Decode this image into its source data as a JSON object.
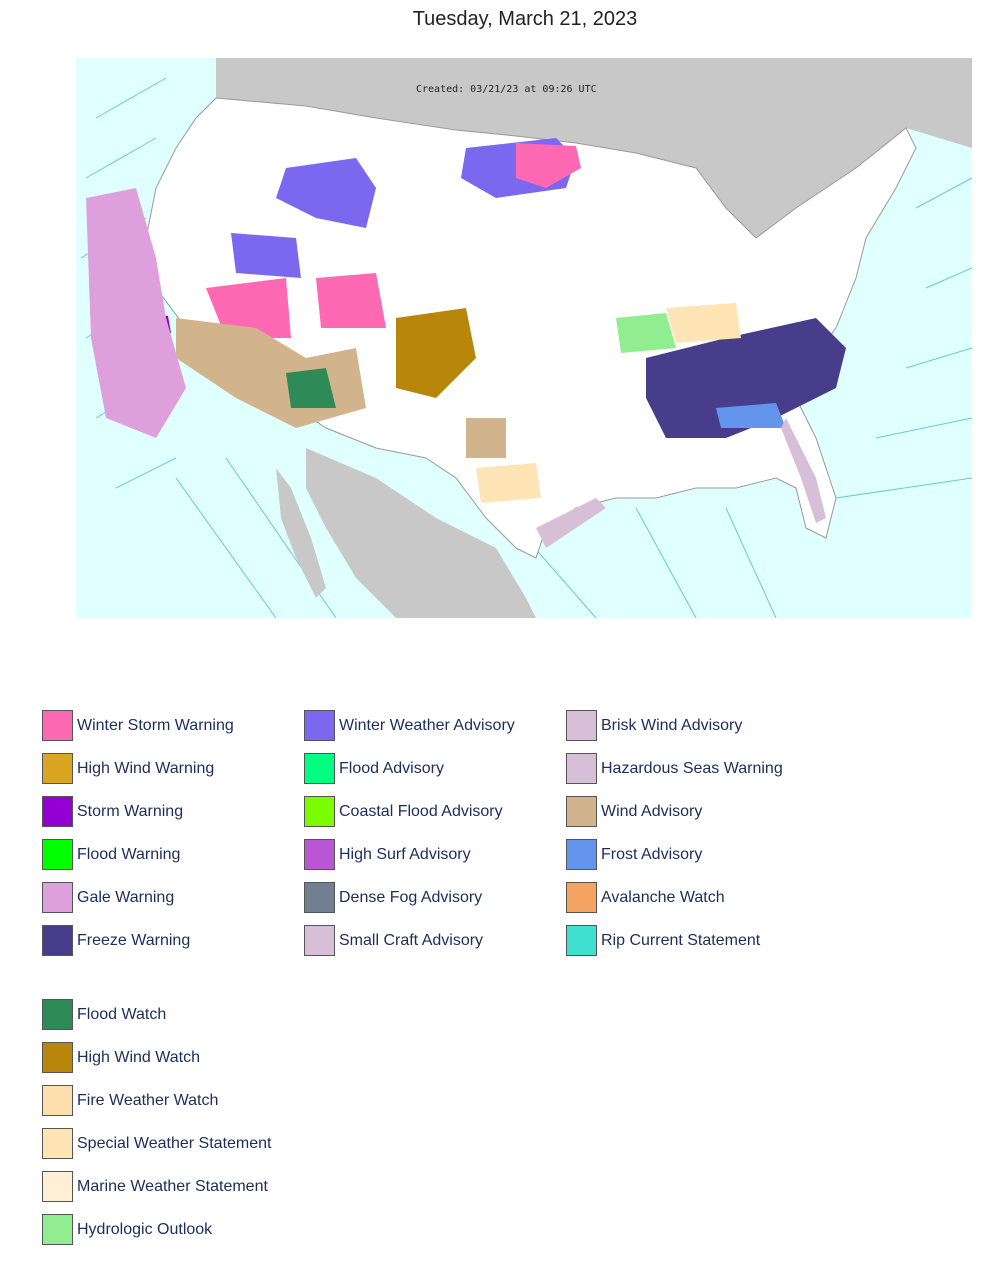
{
  "page": {
    "title": "Tuesday, March 21, 2023"
  },
  "map": {
    "created": "Created: 03/21/23 at 09:26 UTC"
  },
  "legend": {
    "col1": [
      {
        "label": "Winter Storm Warning",
        "color": "#ff69b4"
      },
      {
        "label": "High Wind Warning",
        "color": "#daa520"
      },
      {
        "label": "Storm Warning",
        "color": "#9400d3"
      },
      {
        "label": "Flood Warning",
        "color": "#00ff00"
      },
      {
        "label": "Gale Warning",
        "color": "#dda0dd"
      },
      {
        "label": "Freeze Warning",
        "color": "#483d8b"
      }
    ],
    "col2": [
      {
        "label": "Winter Weather Advisory",
        "color": "#7b68ee"
      },
      {
        "label": "Flood Advisory",
        "color": "#00ff7f"
      },
      {
        "label": "Coastal Flood Advisory",
        "color": "#7cfc00"
      },
      {
        "label": "High Surf Advisory",
        "color": "#ba55d3"
      },
      {
        "label": "Dense Fog Advisory",
        "color": "#708090"
      },
      {
        "label": "Small Craft Advisory",
        "color": "#d8bfd8"
      }
    ],
    "col3": [
      {
        "label": "Brisk Wind Advisory",
        "color": "#d8bfd8"
      },
      {
        "label": "Hazardous Seas Warning",
        "color": "#d8bfd8"
      },
      {
        "label": "Wind Advisory",
        "color": "#d2b48c"
      },
      {
        "label": "Frost Advisory",
        "color": "#6495ed"
      },
      {
        "label": "Avalanche Watch",
        "color": "#f4a460"
      },
      {
        "label": "Rip Current Statement",
        "color": "#40e0d0"
      }
    ],
    "col4": [
      {
        "label": "Flood Watch",
        "color": "#2e8b57"
      },
      {
        "label": "High Wind Watch",
        "color": "#b8860b"
      },
      {
        "label": "Fire Weather Watch",
        "color": "#ffdead"
      },
      {
        "label": "Special Weather Statement",
        "color": "#ffe4b5"
      },
      {
        "label": "Marine Weather Statement",
        "color": "#ffefd5"
      },
      {
        "label": "Hydrologic Outlook",
        "color": "#90ee90"
      }
    ]
  }
}
